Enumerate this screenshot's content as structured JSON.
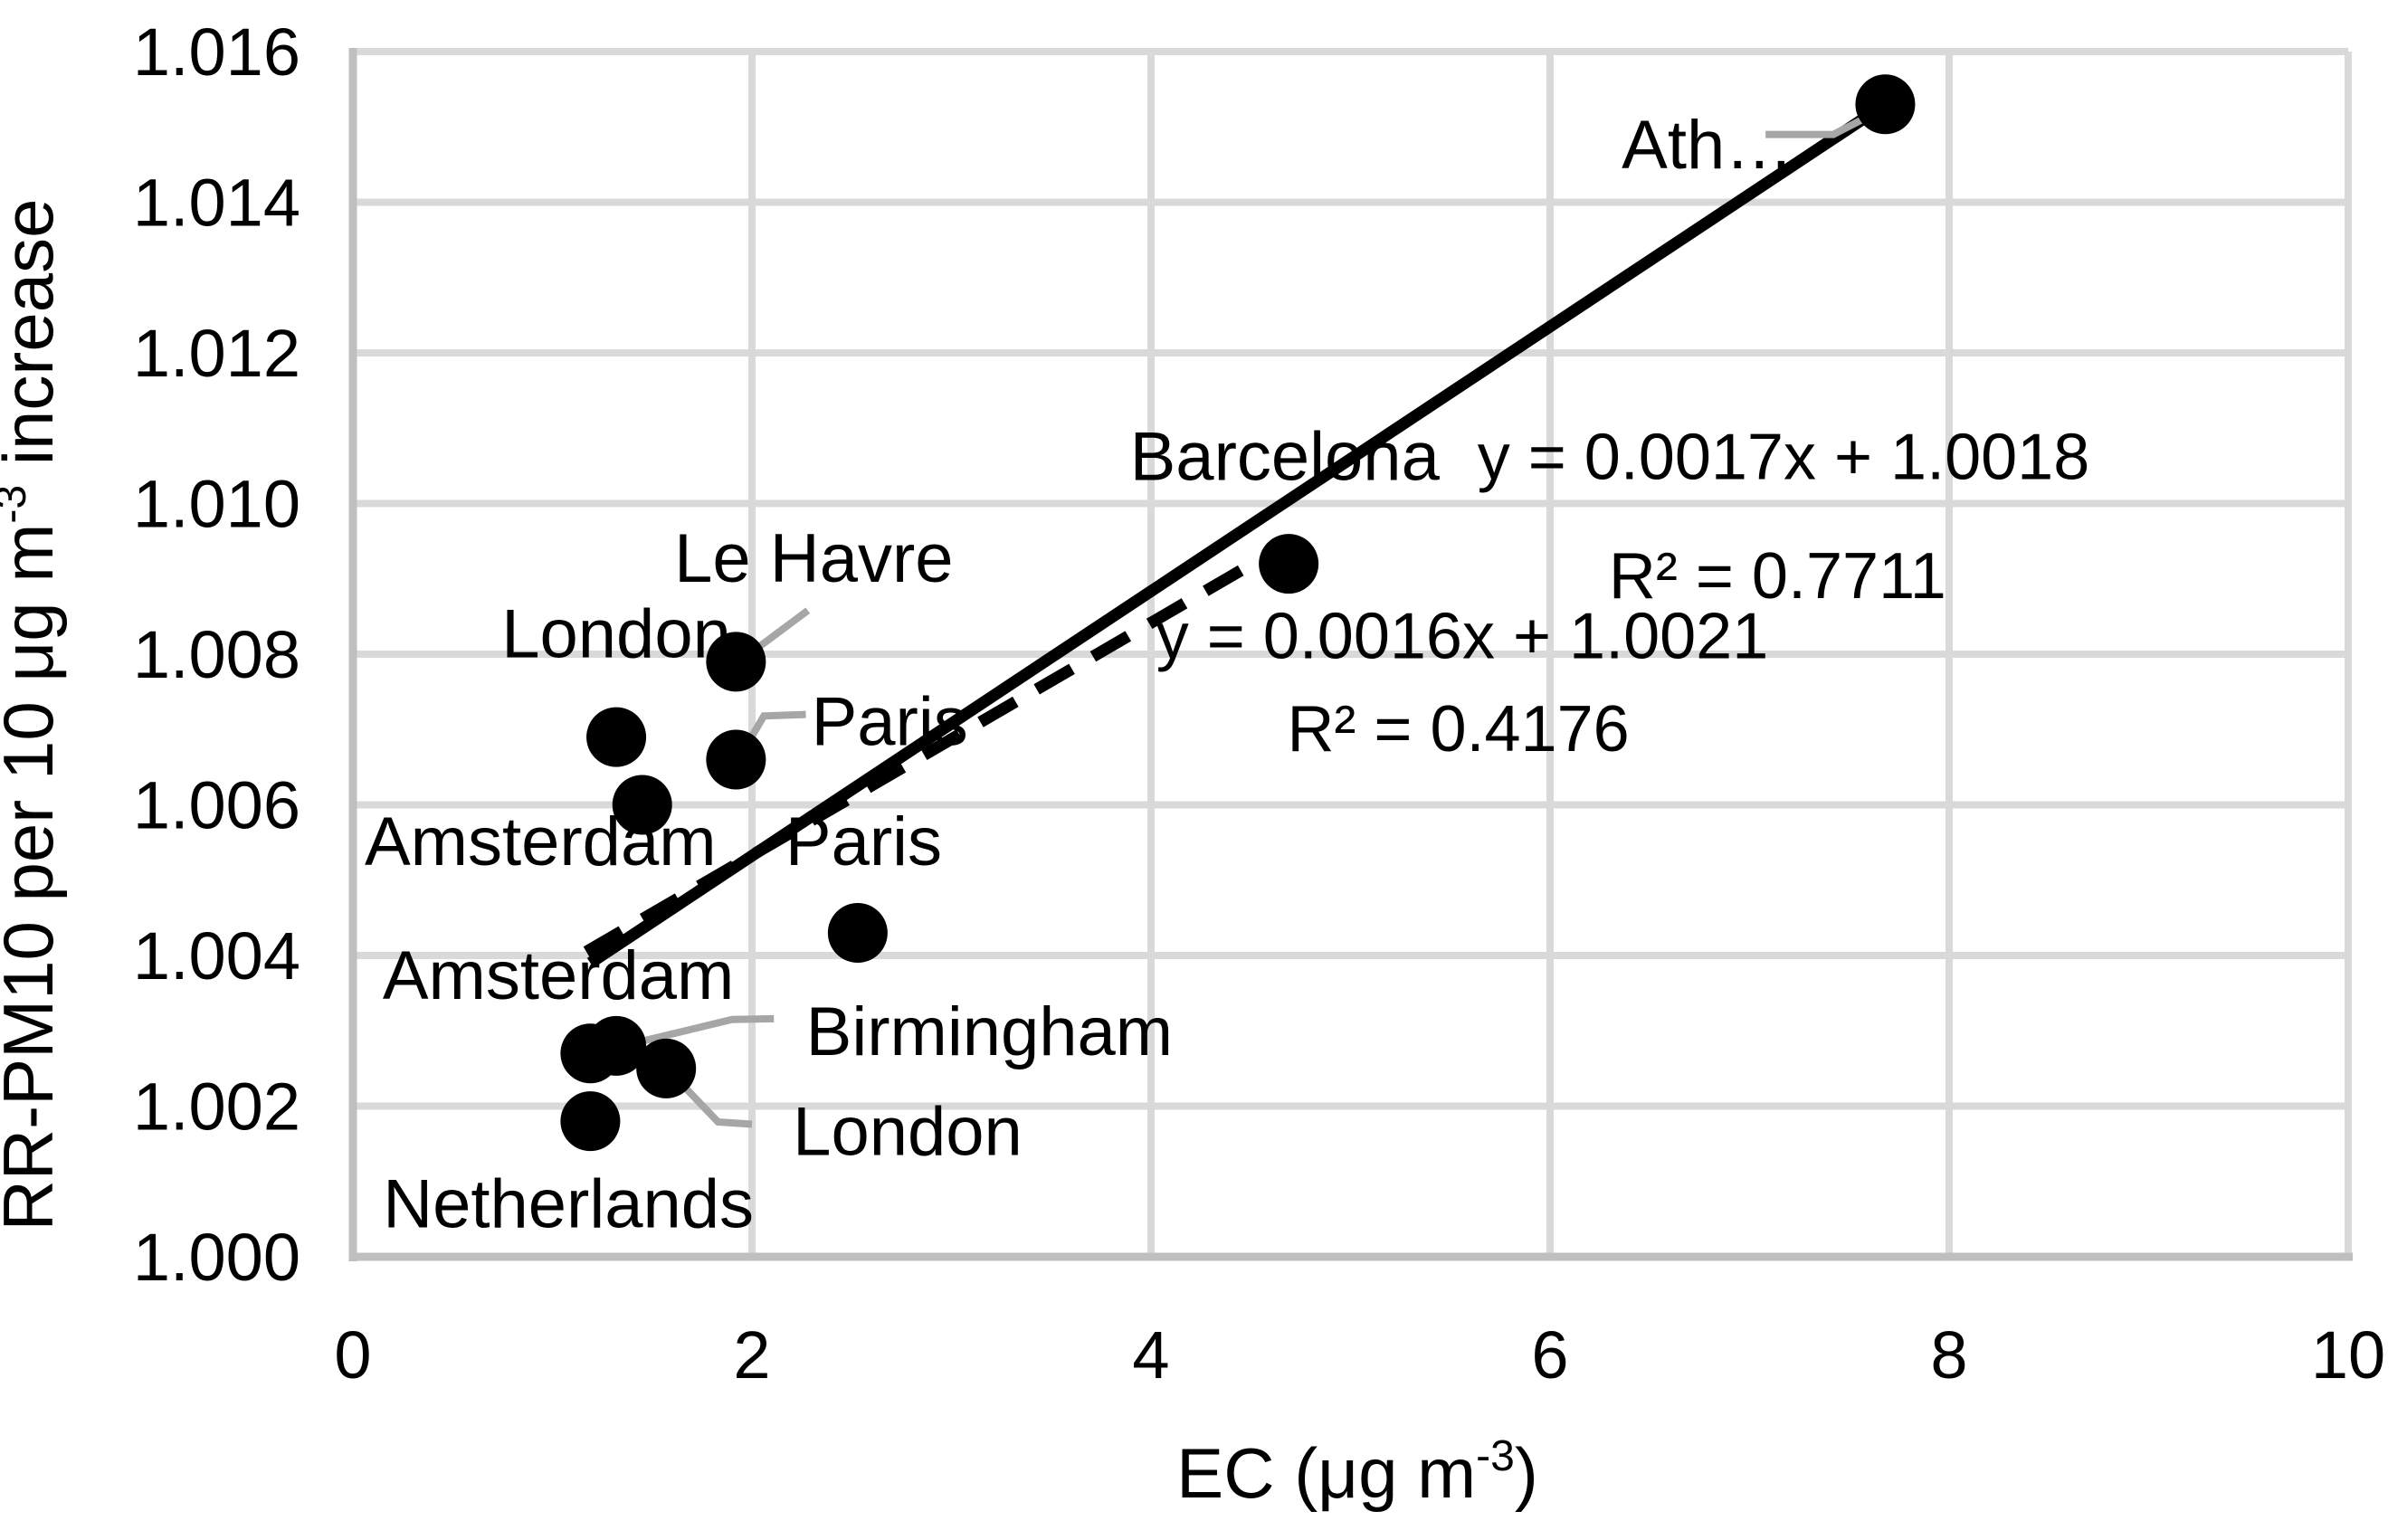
{
  "chart_data": {
    "type": "scatter",
    "title": "",
    "xlabel_parts": [
      {
        "t": "EC (μg m"
      },
      {
        "t": "-3",
        "sup": true
      },
      {
        "t": ")"
      }
    ],
    "ylabel_parts": [
      {
        "t": "RR-PM10 per 10 μg m"
      },
      {
        "t": "-3",
        "sup": true
      },
      {
        "t": " increase"
      }
    ],
    "xlim": [
      0,
      10
    ],
    "ylim": [
      1.0,
      1.016
    ],
    "grid": true,
    "legend": "none",
    "xticks": [
      {
        "v": 0,
        "label": "0"
      },
      {
        "v": 2,
        "label": "2"
      },
      {
        "v": 4,
        "label": "4"
      },
      {
        "v": 6,
        "label": "6"
      },
      {
        "v": 8,
        "label": "8"
      },
      {
        "v": 10,
        "label": "10"
      }
    ],
    "yticks": [
      {
        "v": 1.0,
        "label": "1.000"
      },
      {
        "v": 1.002,
        "label": "1.002"
      },
      {
        "v": 1.004,
        "label": "1.004"
      },
      {
        "v": 1.006,
        "label": "1.006"
      },
      {
        "v": 1.008,
        "label": "1.008"
      },
      {
        "v": 1.01,
        "label": "1.010"
      },
      {
        "v": 1.012,
        "label": "1.012"
      },
      {
        "v": 1.014,
        "label": "1.014"
      },
      {
        "v": 1.016,
        "label": "1.016"
      }
    ],
    "points": [
      {
        "name": "Athens",
        "label": "Ath…",
        "x": 7.68,
        "y": 1.0153,
        "label_pos": {
          "x": 6.79,
          "y": 1.01477
        },
        "leader": [
          [
            7.08,
            1.0149
          ],
          [
            7.42,
            1.0149
          ],
          [
            7.64,
            1.0152
          ]
        ]
      },
      {
        "name": "Barcelona",
        "label": "Barcelona",
        "x": 4.69,
        "y": 1.0092,
        "label_pos": {
          "x": 4.67,
          "y": 1.01063
        }
      },
      {
        "name": "Le Havre",
        "label": "Le Havre",
        "x": 1.92,
        "y": 1.0079,
        "label_pos": {
          "x": 2.31,
          "y": 1.00928
        },
        "leader": [
          [
            2.28,
            1.00858
          ],
          [
            1.93,
            1.00789
          ]
        ]
      },
      {
        "name": "London",
        "label": "London",
        "x": 1.32,
        "y": 1.0069,
        "label_pos": {
          "x": 1.32,
          "y": 1.00828
        }
      },
      {
        "name": "Paris",
        "label": "Paris",
        "x": 1.92,
        "y": 1.0066,
        "label_pos": {
          "x": 2.69,
          "y": 1.00711
        },
        "leader": [
          [
            2.27,
            1.0072
          ],
          [
            2.06,
            1.00718
          ],
          [
            1.93,
            1.0066
          ]
        ]
      },
      {
        "name": "Amsterdam",
        "label": "Amsterdam",
        "x": 1.45,
        "y": 1.006,
        "label_pos": {
          "x": 0.94,
          "y": 1.00552
        }
      },
      {
        "name": "Paris (2)",
        "label": "Paris",
        "x": 2.53,
        "y": 1.0043,
        "label_pos": {
          "x": 2.56,
          "y": 1.00552
        }
      },
      {
        "name": "Amsterdam (2)",
        "label": "Amsterdam",
        "x": 1.19,
        "y": 1.0027,
        "label_pos": {
          "x": 1.03,
          "y": 1.00374
        }
      },
      {
        "name": "Birmingham",
        "label": "Birmingham",
        "x": 1.32,
        "y": 1.0028,
        "label_pos": {
          "x": 3.19,
          "y": 1.003
        },
        "leader": [
          [
            2.11,
            1.00316
          ],
          [
            1.9,
            1.00315
          ],
          [
            1.32,
            1.00278
          ]
        ]
      },
      {
        "name": "London (2)",
        "label": "London",
        "x": 1.57,
        "y": 1.0025,
        "label_pos": {
          "x": 2.78,
          "y": 1.00167
        },
        "leader": [
          [
            1.57,
            1.00251
          ],
          [
            1.83,
            1.00179
          ],
          [
            2.0,
            1.00176
          ]
        ]
      },
      {
        "name": "Netherlands",
        "label": "Netherlands",
        "x": 1.19,
        "y": 1.0018,
        "label_pos": {
          "x": 1.08,
          "y": 1.00071
        }
      }
    ],
    "trendlines": [
      {
        "name": "solid-trendline",
        "style": "solid",
        "equation": "y = 0.0017x + 1.0018",
        "r2": "R² = 0.7711",
        "x1": 1.19,
        "y1": 1.0039,
        "x2": 7.68,
        "y2": 1.0153,
        "equation_pos": {
          "x": 7.17,
          "y": 1.01063
        },
        "r2_pos": {
          "x": 7.14,
          "y": 1.00905
        }
      },
      {
        "name": "dashed-trendline",
        "style": "dashed",
        "equation": "y = 0.0016x + 1.0021",
        "r2": "R² = 0.4176",
        "x1": 1.17,
        "y1": 1.00405,
        "x2": 4.54,
        "y2": 1.00925,
        "equation_pos": {
          "x": 5.56,
          "y": 1.00825
        },
        "r2_pos": {
          "x": 5.54,
          "y": 1.00702
        }
      }
    ],
    "colors": {
      "point": "#000000",
      "trendline": "#000000",
      "leader": "#a6a6a6",
      "gridline": "#d9d9d9",
      "axis": "#bfbfbf",
      "text": "#000000",
      "background": "#ffffff"
    }
  }
}
